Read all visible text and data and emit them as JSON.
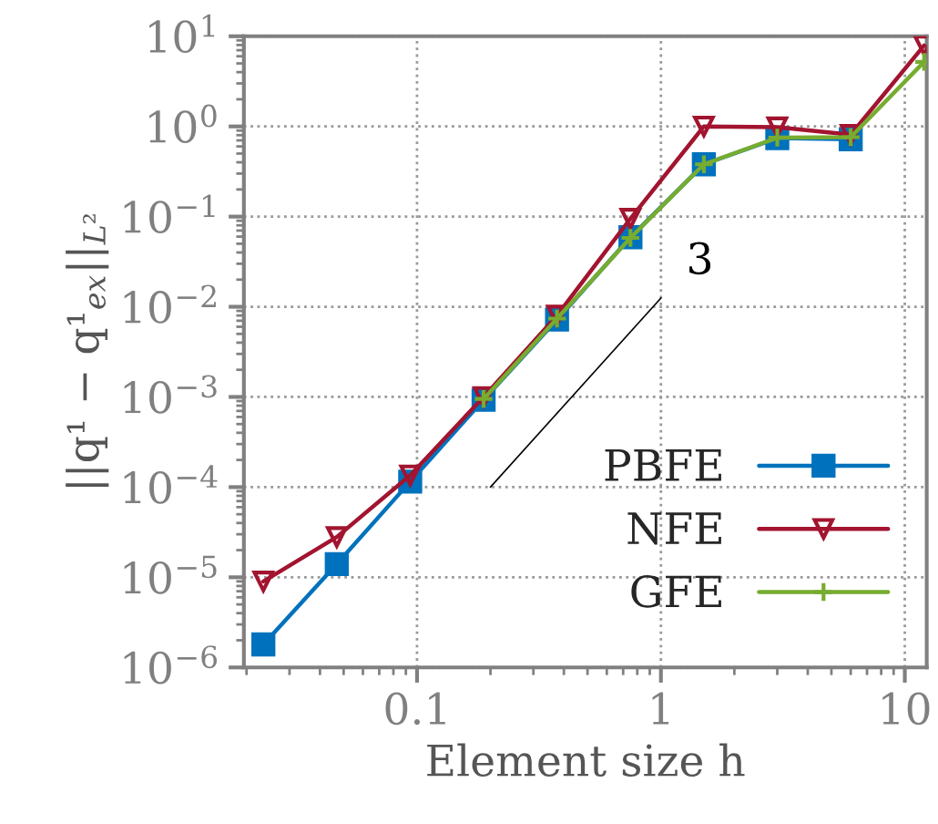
{
  "chart_data": {
    "type": "line",
    "xlabel": "Element size h",
    "ylabel": "||q¹ − q¹$_{ex}$||$_{L²}$",
    "log": "xy",
    "xlim": [
      0.0195,
      12.3
    ],
    "ylim": [
      1e-06,
      10
    ],
    "xticks": [
      0.1,
      1,
      10
    ],
    "yticks": [
      {
        "value": 1e-06,
        "label": "10$^{−6}$"
      },
      {
        "value": 1e-05,
        "label": "10$^{−5}$"
      },
      {
        "value": 0.0001,
        "label": "10$^{−4}$"
      },
      {
        "value": 0.001,
        "label": "10$^{−3}$"
      },
      {
        "value": 0.01,
        "label": "10$^{−2}$"
      },
      {
        "value": 0.1,
        "label": "10$^{−1}$"
      },
      {
        "value": 1,
        "label": "10$^{0}$"
      },
      {
        "value": 10,
        "label": "10$^{1}$"
      }
    ],
    "grid": true,
    "legend": "bottom right",
    "annotations": [
      "3"
    ],
    "series": [
      {
        "name": "PBFE",
        "color": "#0072bd",
        "marker": "square",
        "x": [
          0.0234375,
          0.046875,
          0.09375,
          0.1875,
          0.375,
          0.75,
          1.5,
          3,
          6
        ],
        "values": [
          1.8e-06,
          1.4e-05,
          0.000115,
          0.00093,
          0.0072,
          0.059,
          0.38,
          0.74,
          0.72
        ]
      },
      {
        "name": "NFE",
        "color": "#a2142f",
        "marker": "triangle",
        "x": [
          0.0234375,
          0.046875,
          0.09375,
          0.1875,
          0.375,
          0.75,
          1.5,
          3,
          6,
          12
        ],
        "values": [
          9e-06,
          2.8e-05,
          0.000135,
          0.001,
          0.008,
          0.095,
          1.0,
          0.98,
          0.81,
          7.9
        ]
      },
      {
        "name": "GFE",
        "color": "#77ac30",
        "marker": "cross",
        "x": [
          0.1875,
          0.375,
          0.75,
          1.5,
          3,
          6,
          12
        ],
        "values": [
          0.00095,
          0.0074,
          0.058,
          0.38,
          0.75,
          0.76,
          5.2
        ]
      },
      {
        "type": "line",
        "color": "#000000",
        "marker": "none",
        "x": [
          0.2,
          1
        ],
        "values": [
          0.0001,
          0.0125
        ]
      }
    ]
  }
}
